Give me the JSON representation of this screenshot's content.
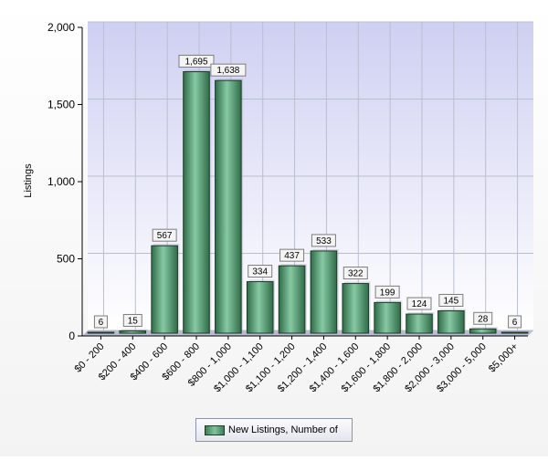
{
  "chart_data": {
    "type": "bar",
    "categories": [
      "$0 - 200",
      "$200 - 400",
      "$400 - 600",
      "$600 - 800",
      "$800 - 1,000",
      "$1,000 - 1,100",
      "$1,100 - 1,200",
      "$1,200 - 1,400",
      "$1,400 - 1,600",
      "$1,600 - 1,800",
      "$1,800 - 2,000",
      "$2,000 - 3,000",
      "$3,000 - 5,000",
      "$5,000+"
    ],
    "series": [
      {
        "name": "New Listings, Number of",
        "values": [
          6,
          15,
          567,
          1695,
          1638,
          334,
          437,
          533,
          322,
          199,
          124,
          145,
          28,
          6
        ],
        "labels": [
          "6",
          "15",
          "567",
          "1,695",
          "1,638",
          "334",
          "437",
          "533",
          "322",
          "199",
          "124",
          "145",
          "28",
          "6"
        ]
      }
    ],
    "ylabel": "Listings",
    "ylim": [
      0,
      2000
    ],
    "yticks": [
      0,
      500,
      1000,
      1500,
      2000
    ],
    "ytick_labels": [
      "0",
      "500",
      "1,000",
      "1,500",
      "2,000"
    ],
    "grid": true,
    "legend": "bottom-center",
    "colors": {
      "bar": "#3e8a5e",
      "bar_highlight": "#86c9a3",
      "bar_edge": "#1e3a28",
      "plot_bg_top": "#cfd0f2",
      "plot_bg_bottom": "#ffffff",
      "grid": "#b9bfd0"
    }
  }
}
